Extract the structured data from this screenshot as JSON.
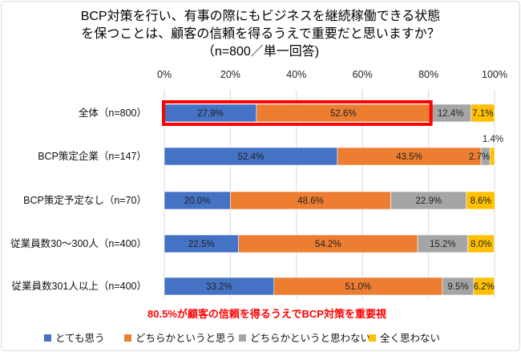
{
  "chart_data": {
    "type": "bar",
    "orientation": "horizontal",
    "stacked": true,
    "title_lines": [
      "BCP対策を行い、有事の際にもビジネスを継続稼働できる状態",
      "を保つことは、顧客の信頼を得るうえで重要だと思いますか？",
      "（n=800／単一回答)"
    ],
    "x_ticks": [
      "0%",
      "20%",
      "40%",
      "60%",
      "80%",
      "100%"
    ],
    "xlim": [
      0,
      100
    ],
    "categories": [
      "全体（n=800）",
      "BCP策定企業（n=147）",
      "BCP策定予定なし（n=70）",
      "従業員数30～300人（n=400）",
      "従業員数301人以上（n=400）"
    ],
    "series": [
      {
        "name": "とても思う",
        "color": "#4472c4",
        "values": [
          27.9,
          52.4,
          20.0,
          22.5,
          33.2
        ],
        "labels": [
          "27.9%",
          "52.4%",
          "20.0%",
          "22.5%",
          "33.2%"
        ]
      },
      {
        "name": "どちらかというと思う",
        "color": "#ed7d31",
        "values": [
          52.6,
          43.5,
          48.6,
          54.2,
          51.0
        ],
        "labels": [
          "52.6%",
          "43.5%",
          "48.6%",
          "54.2%",
          "51.0%"
        ]
      },
      {
        "name": "どちらかというと思わない",
        "color": "#a5a5a5",
        "values": [
          12.4,
          2.7,
          22.9,
          15.2,
          9.5
        ],
        "labels": [
          "12.4%",
          "2.7%",
          "22.9%",
          "15.2%",
          "9.5%"
        ]
      },
      {
        "name": "全く思わない",
        "color": "#ffc000",
        "values": [
          7.1,
          1.4,
          8.6,
          8.0,
          6.2
        ],
        "labels": [
          "7.1%",
          "1.4%",
          "8.6%",
          "8.0%",
          "6.2%"
        ]
      }
    ],
    "annotation": "80.5%が顧客の信頼を得るうえでBCP対策を重要視",
    "highlight": {
      "category_index": 0,
      "series_indices": [
        0,
        1
      ],
      "color": "#ff0000"
    },
    "legend_position": "bottom",
    "grid": true
  }
}
